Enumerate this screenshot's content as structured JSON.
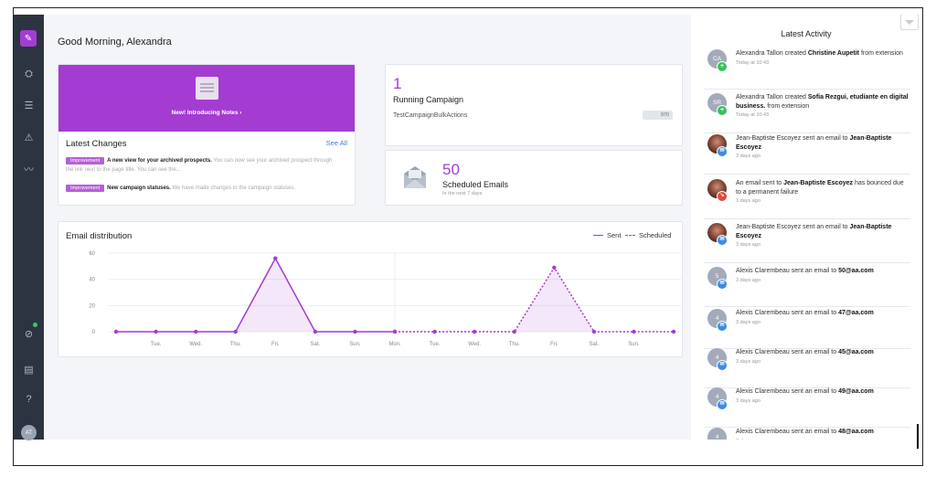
{
  "greeting": "Good Morning, Alexandra",
  "sidebar": {
    "items": [
      {
        "name": "compose-icon",
        "glyph": "✎"
      },
      {
        "name": "prospects-icon",
        "glyph": "⛭"
      },
      {
        "name": "lists-icon",
        "glyph": "☰"
      },
      {
        "name": "campaigns-icon",
        "glyph": "⚠"
      },
      {
        "name": "analytics-icon",
        "glyph": "〰"
      },
      {
        "name": "compass-icon",
        "glyph": "⊘"
      },
      {
        "name": "gift-icon",
        "glyph": "▤"
      },
      {
        "name": "help-icon",
        "glyph": "?"
      }
    ],
    "avatar_initials": "AT"
  },
  "notes": {
    "title": "New! Introducing Notes ›"
  },
  "latest_changes": {
    "title": "Latest Changes",
    "see_all": "See All",
    "items": [
      {
        "badge": "Improvement",
        "bold": "A new view for your archived prospects.",
        "rest": " You can now see your archived prospect through the link next to the page title. You can see the..."
      },
      {
        "badge": "Improvement",
        "bold": "New campaign statuses.",
        "rest": " We have made changes to the campaign statuses."
      }
    ]
  },
  "running_campaign": {
    "count": "1",
    "label": "Running Campaign",
    "campaign_name": "TestCampaignBulkActions",
    "tag": "970"
  },
  "scheduled_emails": {
    "count": "50",
    "label": "Scheduled Emails",
    "sub": "In the next 7 days"
  },
  "email_distribution": {
    "title": "Email distribution",
    "legend_sent": "Sent",
    "legend_scheduled": "Scheduled"
  },
  "chart_data": {
    "type": "line",
    "title": "Email distribution",
    "x": [
      "",
      "Tue.",
      "Wed.",
      "Thu.",
      "Fri.",
      "Sat.",
      "Sun.",
      "Mon.",
      "Tue.",
      "Wed.",
      "Thu.",
      "Fri.",
      "Sat.",
      "Sun.",
      ""
    ],
    "yticks": [
      0,
      20,
      40,
      60
    ],
    "ylim": [
      0,
      60
    ],
    "series": [
      {
        "name": "Sent",
        "style": "solid",
        "values": [
          0,
          0,
          0,
          0,
          56,
          0,
          0,
          0,
          null,
          null,
          null,
          null,
          null,
          null,
          null
        ]
      },
      {
        "name": "Scheduled",
        "style": "dashed",
        "values": [
          null,
          null,
          null,
          null,
          null,
          null,
          null,
          0,
          0,
          0,
          0,
          49,
          0,
          0,
          0
        ]
      }
    ],
    "color": "#a43cd2",
    "grid": true
  },
  "activity": {
    "title": "Latest Activity",
    "items": [
      {
        "initials": "CA",
        "photo": false,
        "sub": "green",
        "sub_glyph": "+",
        "pre": "Alexandra Tallon created ",
        "bold": "Christine Aupetit",
        "post": " from extension",
        "time": "Today at 10:43"
      },
      {
        "initials": "SR",
        "photo": false,
        "sub": "green",
        "sub_glyph": "+",
        "pre": "Alexandra Tallon created ",
        "bold": "Sofia Rezgui, etudiante en digital business.",
        "post": " from extension",
        "time": "Today at 10:43"
      },
      {
        "initials": "",
        "photo": true,
        "sub": "blue",
        "sub_glyph": "✉",
        "pre": "Jean-Baptiste Escoyez sent an email to ",
        "bold": "Jean-Baptiste Escoyez",
        "post": "",
        "time": "3 days ago"
      },
      {
        "initials": "",
        "photo": true,
        "sub": "red",
        "sub_glyph": "↘",
        "pre": "An email sent to ",
        "bold": "Jean-Baptiste Escoyez",
        "post": " has bounced due to a permanent failure",
        "time": "3 days ago"
      },
      {
        "initials": "",
        "photo": true,
        "sub": "blue",
        "sub_glyph": "✉",
        "pre": "Jean-Baptiste Escoyez sent an email to ",
        "bold": "Jean-Baptiste Escoyez",
        "post": "",
        "time": "3 days ago"
      },
      {
        "initials": "5",
        "photo": false,
        "sub": "blue",
        "sub_glyph": "✉",
        "pre": "Alexis Clarembeau sent an email to ",
        "bold": "50@aa.com",
        "post": "",
        "time": "3 days ago"
      },
      {
        "initials": "4",
        "photo": false,
        "sub": "blue",
        "sub_glyph": "✉",
        "pre": "Alexis Clarembeau sent an email to ",
        "bold": "47@aa.com",
        "post": "",
        "time": "3 days ago"
      },
      {
        "initials": "4",
        "photo": false,
        "sub": "blue",
        "sub_glyph": "✉",
        "pre": "Alexis Clarembeau sent an email to ",
        "bold": "45@aa.com",
        "post": "",
        "time": "3 days ago"
      },
      {
        "initials": "4",
        "photo": false,
        "sub": "blue",
        "sub_glyph": "✉",
        "pre": "Alexis Clarembeau sent an email to ",
        "bold": "49@aa.com",
        "post": "",
        "time": "3 days ago"
      },
      {
        "initials": "4",
        "photo": false,
        "sub": "blue",
        "sub_glyph": "✉",
        "pre": "Alexis Clarembeau sent an email to ",
        "bold": "48@aa.com",
        "post": "",
        "time": "3 days ago"
      }
    ]
  }
}
